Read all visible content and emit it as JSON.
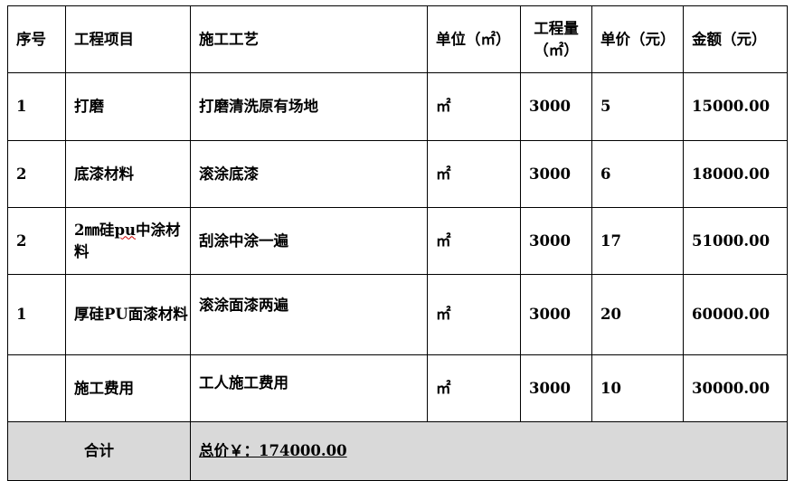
{
  "headers": [
    "序号",
    "工程项目",
    "施工工艺",
    "单位（㎡）",
    "工程量（㎡）",
    "单价（元）",
    "金额（元）"
  ],
  "rows": [
    {
      "no": "1",
      "item": "打磨",
      "process": "打磨清洗原有场地",
      "unit": "㎡",
      "qty": "3000",
      "price": "5",
      "amount": "15000.00"
    },
    {
      "no": "2",
      "item": "底漆材料",
      "process": "滚涂底漆",
      "unit": "㎡",
      "qty": "3000",
      "price": "6",
      "amount": "18000.00"
    },
    {
      "no": "2",
      "item_pre": "2㎜硅",
      "item_wavy": "pu",
      "item_post": "中涂材料",
      "process": "刮涂中涂一遍",
      "unit": "㎡",
      "qty": "3000",
      "price": "17",
      "amount": "51000.00"
    },
    {
      "no": "1",
      "item": "厚硅PU面漆材料",
      "process": "滚涂面漆两遍",
      "unit": "㎡",
      "qty": "3000",
      "price": "20",
      "amount": "60000.00"
    },
    {
      "no": "",
      "item": "施工费用",
      "process": "工人施工费用",
      "unit": "㎡",
      "qty": "3000",
      "price": "10",
      "amount": "30000.00"
    }
  ],
  "total": {
    "label": "合计",
    "value": "总价￥：174000.00"
  }
}
